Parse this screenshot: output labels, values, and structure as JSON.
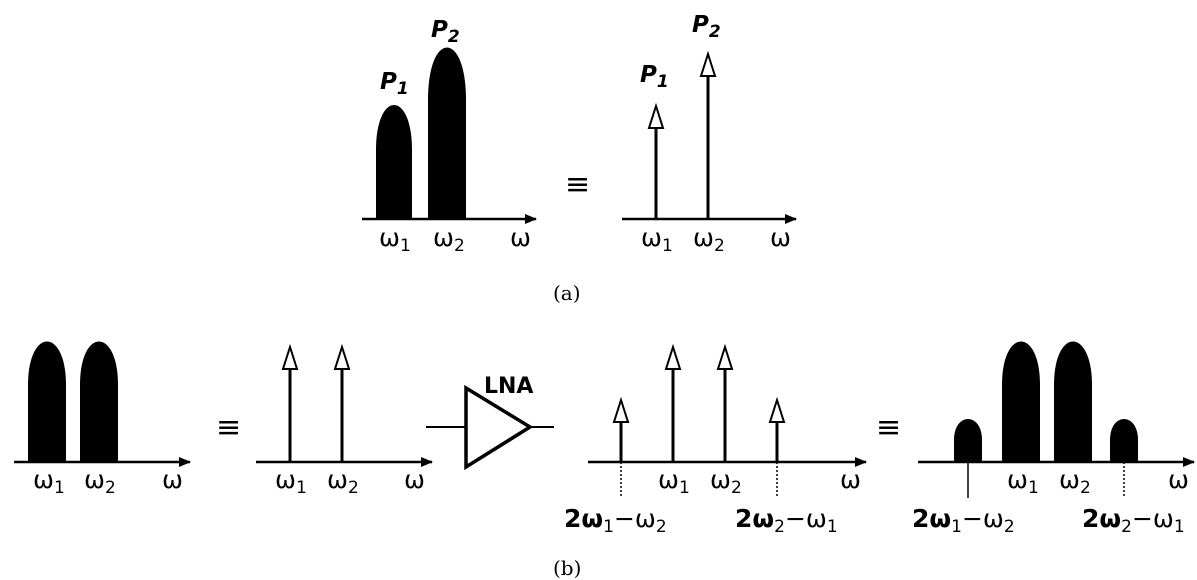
{
  "labels": {
    "omega": "ω",
    "one": "1",
    "two": "2",
    "p": "P",
    "equiv": "≡",
    "lna": "LNA",
    "imd_low": "2ω",
    "imd_low_rest": "−ω",
    "imd_high": "2ω",
    "imd_high_rest": "−ω"
  },
  "captions": {
    "a": "(a)",
    "b": "(b)"
  }
}
